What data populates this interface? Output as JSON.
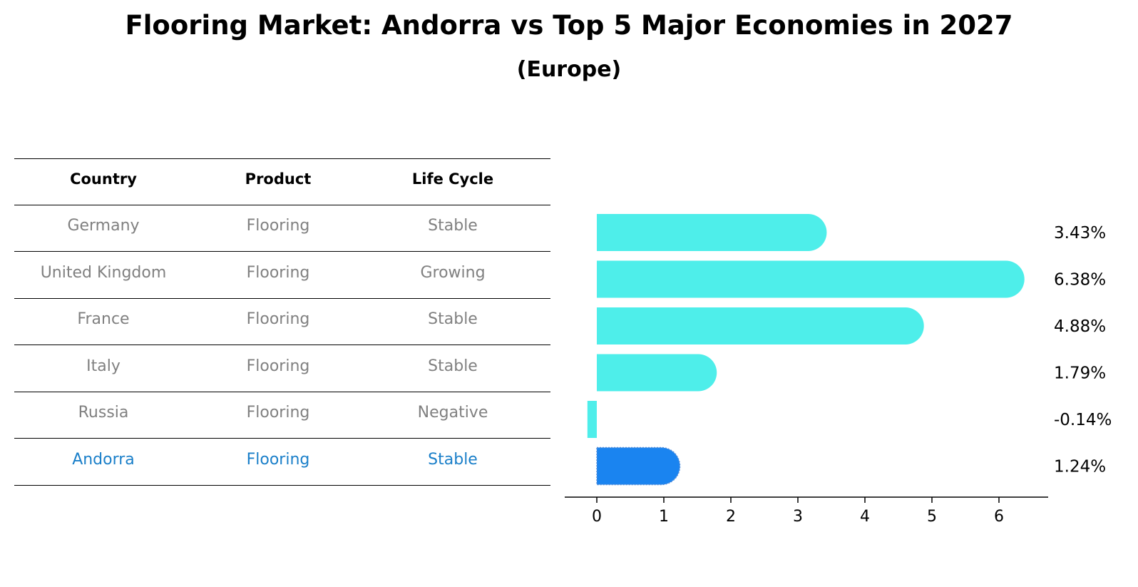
{
  "title": "Flooring Market: Andorra vs Top 5 Major Economies in 2027",
  "subtitle": "(Europe)",
  "table": {
    "headers": [
      "Country",
      "Product",
      "Life Cycle"
    ],
    "rows": [
      {
        "country": "Germany",
        "product": "Flooring",
        "life_cycle": "Stable"
      },
      {
        "country": "United Kingdom",
        "product": "Flooring",
        "life_cycle": "Growing"
      },
      {
        "country": "France",
        "product": "Flooring",
        "life_cycle": "Stable"
      },
      {
        "country": "Italy",
        "product": "Flooring",
        "life_cycle": "Stable"
      },
      {
        "country": "Russia",
        "product": "Flooring",
        "life_cycle": "Negative"
      },
      {
        "country": "Andorra",
        "product": "Flooring",
        "life_cycle": "Stable"
      }
    ]
  },
  "colors": {
    "bar": "#4eeeea",
    "highlight": "#1a84f0",
    "row_text": "#808080",
    "highlight_text": "#1a7fc9"
  },
  "chart_data": {
    "type": "bar",
    "orientation": "horizontal",
    "categories": [
      "Germany",
      "United Kingdom",
      "France",
      "Italy",
      "Russia",
      "Andorra"
    ],
    "values": [
      3.43,
      6.38,
      4.88,
      1.79,
      -0.14,
      1.24
    ],
    "value_labels": [
      "3.43%",
      "6.38%",
      "4.88%",
      "1.79%",
      "-0.14%",
      "1.24%"
    ],
    "highlight": "Andorra",
    "xlim": [
      -0.5,
      6.7
    ],
    "xticks": [
      0,
      1,
      2,
      3,
      4,
      5,
      6
    ],
    "xlabel": "",
    "ylabel": "",
    "grid": false
  }
}
